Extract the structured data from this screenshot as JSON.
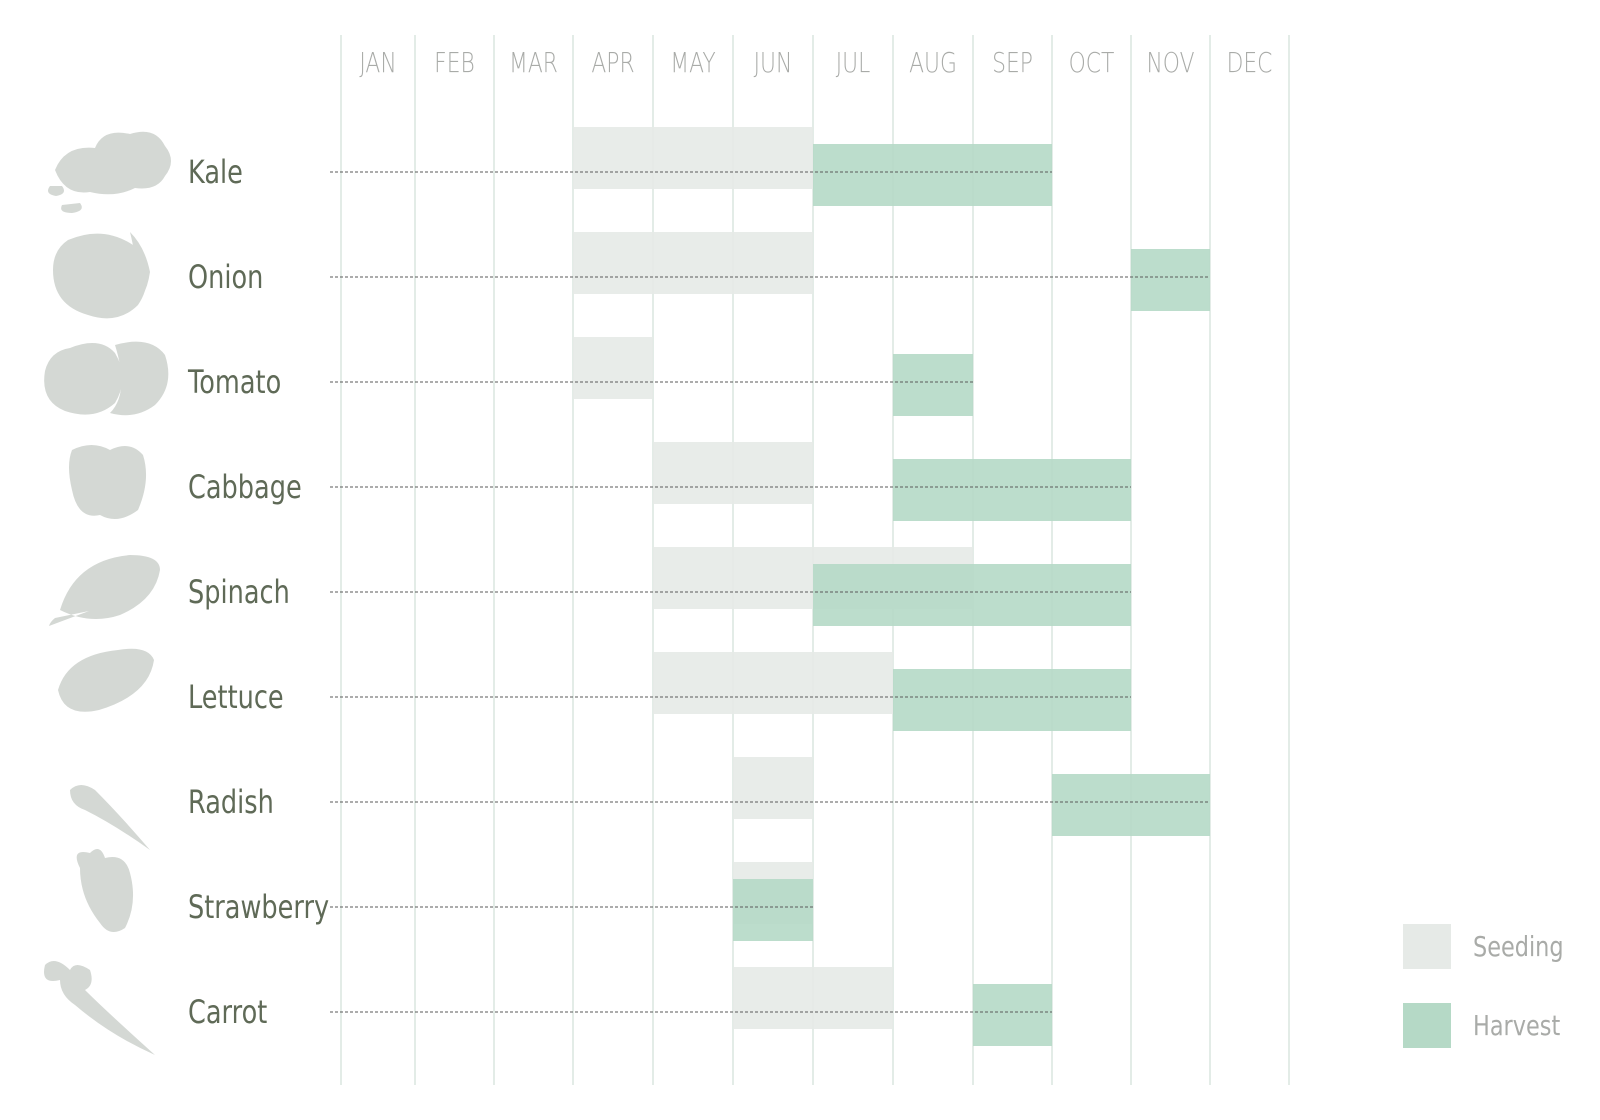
{
  "chart_data": {
    "type": "gantt",
    "months": [
      "JAN",
      "FEB",
      "MAR",
      "APR",
      "MAY",
      "JUN",
      "JUL",
      "AUG",
      "SEP",
      "OCT",
      "NOV",
      "DEC"
    ],
    "colors": {
      "seeding": "#e6eae7",
      "harvest": "#b5d9c6",
      "grid": "#e3ece7"
    },
    "legend": [
      {
        "key": "seeding",
        "label": "Seeding"
      },
      {
        "key": "harvest",
        "label": "Harvest"
      }
    ],
    "crops": [
      {
        "name": "Kale",
        "icon": "kale-icon",
        "seeding": [
          4,
          6
        ],
        "harvest": [
          7,
          9
        ]
      },
      {
        "name": "Onion",
        "icon": "onion-icon",
        "seeding": [
          4,
          6
        ],
        "harvest": [
          11,
          11
        ]
      },
      {
        "name": "Tomato",
        "icon": "tomato-icon",
        "seeding": [
          4,
          4
        ],
        "harvest": [
          8,
          8
        ]
      },
      {
        "name": "Cabbage",
        "icon": "cabbage-icon",
        "seeding": [
          5,
          6
        ],
        "harvest": [
          8,
          10
        ]
      },
      {
        "name": "Spinach",
        "icon": "spinach-icon",
        "seeding": [
          5,
          8
        ],
        "harvest": [
          7,
          10
        ]
      },
      {
        "name": "Lettuce",
        "icon": "lettuce-icon",
        "seeding": [
          5,
          7
        ],
        "harvest": [
          8,
          10
        ]
      },
      {
        "name": "Radish",
        "icon": "radish-icon",
        "seeding": [
          6,
          6
        ],
        "harvest": [
          10,
          11
        ]
      },
      {
        "name": "Strawberry",
        "icon": "strawberry-icon",
        "seeding": [
          6,
          6
        ],
        "harvest": [
          6,
          6
        ]
      },
      {
        "name": "Carrot",
        "icon": "carrot-icon",
        "seeding": [
          6,
          7
        ],
        "harvest": [
          9,
          9
        ]
      }
    ]
  }
}
